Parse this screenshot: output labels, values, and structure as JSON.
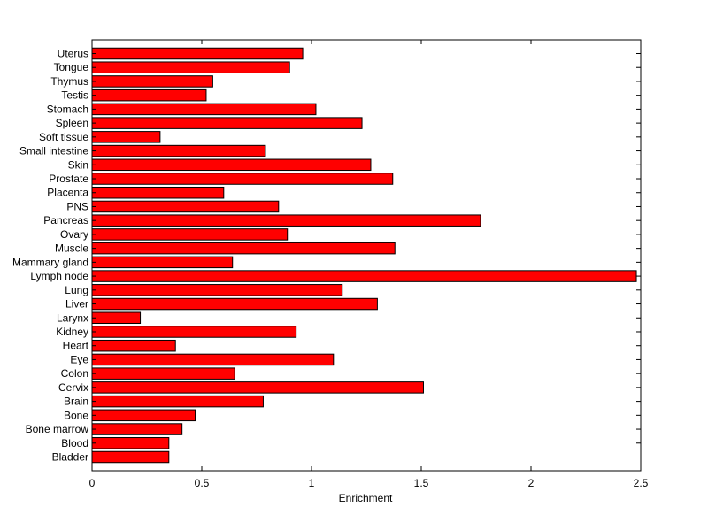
{
  "chart_data": {
    "type": "bar",
    "orientation": "horizontal",
    "categories": [
      "Bladder",
      "Blood",
      "Bone marrow",
      "Bone",
      "Brain",
      "Cervix",
      "Colon",
      "Eye",
      "Heart",
      "Kidney",
      "Larynx",
      "Liver",
      "Lung",
      "Lymph node",
      "Mammary gland",
      "Muscle",
      "Ovary",
      "Pancreas",
      "PNS",
      "Placenta",
      "Prostate",
      "Skin",
      "Small intestine",
      "Soft tissue",
      "Spleen",
      "Stomach",
      "Testis",
      "Thymus",
      "Tongue",
      "Uterus"
    ],
    "values": [
      0.35,
      0.35,
      0.41,
      0.47,
      0.78,
      1.51,
      0.65,
      1.1,
      0.38,
      0.93,
      0.22,
      1.3,
      1.14,
      2.48,
      0.64,
      1.38,
      0.89,
      1.77,
      0.85,
      0.6,
      1.37,
      1.27,
      0.79,
      0.31,
      1.23,
      1.02,
      0.52,
      0.55,
      0.9,
      0.96
    ],
    "xlabel": "Enrichment",
    "ylabel": "",
    "title": "",
    "xlim": [
      0,
      2.5
    ],
    "xticks": [
      "0",
      "0.5",
      "1",
      "1.5",
      "2",
      "2.5"
    ],
    "grid": false,
    "bar_color": "#ff0000",
    "bar_edge_color": "#000000"
  }
}
